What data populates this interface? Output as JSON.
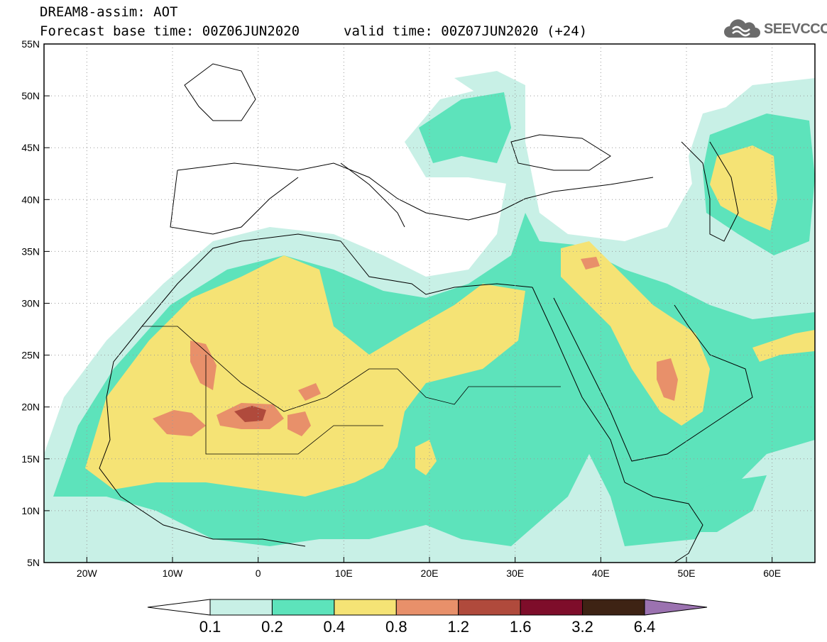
{
  "header": {
    "title": "DREAM8-assim: AOT",
    "base_time": "Forecast base time: 00Z06JUN2020",
    "valid_time": "valid time: 00Z07JUN2020 (+24)"
  },
  "logo": {
    "text": "SEEVCCC",
    "icon": "cloud-icon"
  },
  "map": {
    "lat_labels": [
      "55N",
      "50N",
      "45N",
      "40N",
      "35N",
      "30N",
      "25N",
      "20N",
      "15N",
      "10N",
      "5N"
    ],
    "lon_labels": [
      "20W",
      "10W",
      "0",
      "10E",
      "20E",
      "30E",
      "40E",
      "50E",
      "60E"
    ],
    "lat_values": [
      55,
      50,
      45,
      40,
      35,
      30,
      25,
      20,
      15,
      10,
      5
    ],
    "lon_values": [
      -20,
      -10,
      0,
      10,
      20,
      30,
      40,
      50,
      60
    ],
    "lon_range": [
      -25,
      65
    ],
    "lat_range": [
      5,
      55
    ],
    "gridlines": "dotted"
  },
  "colorbar": {
    "levels": [
      "0.1",
      "0.2",
      "0.4",
      "0.8",
      "1.2",
      "1.6",
      "3.2",
      "6.4"
    ],
    "colors": [
      "#ffffff",
      "#c8f0e6",
      "#5de3bb",
      "#f5e375",
      "#e8906a",
      "#b04a3c",
      "#7e0d2a",
      "#3e2314",
      "#9b72b0"
    ]
  },
  "colors": {
    "very_light": "#c8f0e6",
    "light": "#5de3bb",
    "medium": "#f5e375",
    "high": "#e8906a",
    "higher": "#b04a3c"
  }
}
